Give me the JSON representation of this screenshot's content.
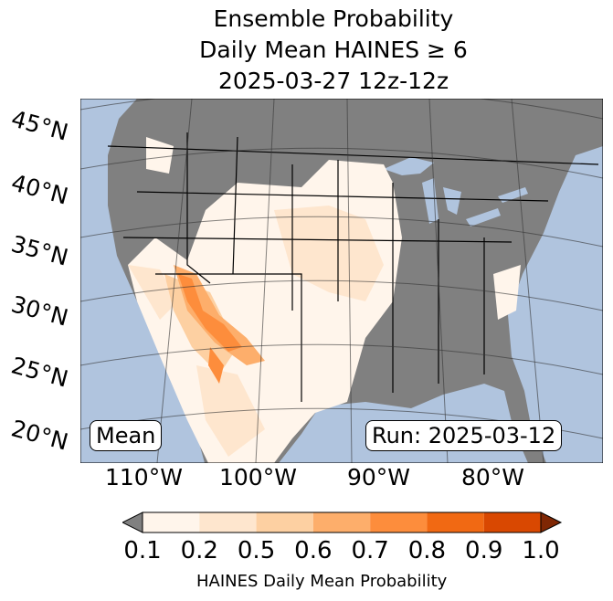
{
  "title": {
    "line1": "Ensemble Probability",
    "line2": "Daily Mean HAINES ≥ 6",
    "line3": "2025-03-27 12z-12z"
  },
  "lat_labels": [
    "45°N",
    "40°N",
    "35°N",
    "30°N",
    "25°N",
    "20°N"
  ],
  "lon_labels": [
    "110°W",
    "100°W",
    "90°W",
    "80°W"
  ],
  "mean_box": "Mean",
  "run_box": "Run: 2025-03-12",
  "colorbar": {
    "label": "HAINES Daily Mean Probability",
    "ticks": [
      "0.1",
      "0.2",
      "0.5",
      "0.6",
      "0.7",
      "0.8",
      "0.9",
      "1.0"
    ],
    "under_color": "#808080",
    "over_color": "#7f2704",
    "colors": [
      "#fff5eb",
      "#fee6ce",
      "#fdd0a2",
      "#fdae6b",
      "#fd8d3c",
      "#f16913",
      "#d94801"
    ]
  },
  "colors": {
    "ocean": "#b0c4de",
    "land": "#808080"
  }
}
